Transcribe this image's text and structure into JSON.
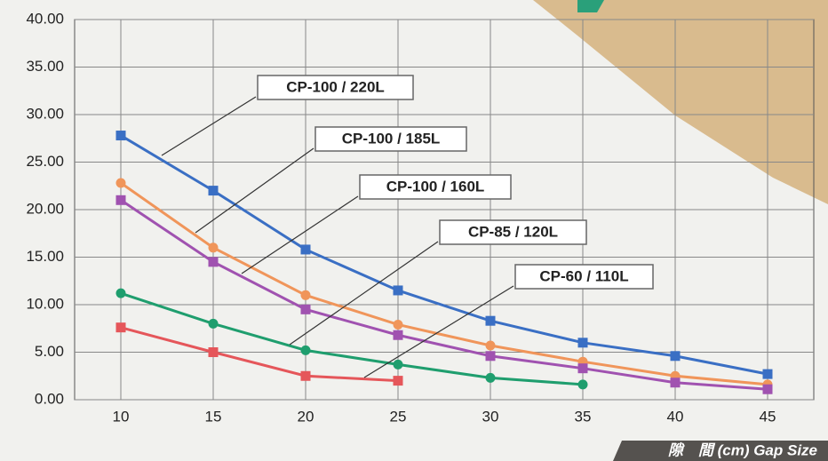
{
  "chart_data": {
    "type": "line",
    "x_label": "隙　間 (cm) Gap Size",
    "x": [
      10,
      15,
      20,
      25,
      30,
      35,
      40,
      45
    ],
    "series": [
      {
        "name": "CP-100 / 220L",
        "color": "#3a6fc4",
        "marker": "square",
        "values": [
          27.8,
          22,
          15.8,
          11.5,
          8.3,
          6,
          4.6,
          2.7
        ]
      },
      {
        "name": "CP-100 / 185L",
        "color": "#f0955a",
        "marker": "circle",
        "values": [
          22.8,
          16,
          11,
          7.9,
          5.7,
          4,
          2.5,
          1.6
        ]
      },
      {
        "name": "CP-100 / 160L",
        "color": "#a052b0",
        "marker": "square",
        "values": [
          21,
          14.5,
          9.5,
          6.8,
          4.6,
          3.3,
          1.8,
          1.1
        ]
      },
      {
        "name": "CP-85 / 120L",
        "color": "#1f9e6e",
        "marker": "circle",
        "values": [
          11.2,
          8,
          5.2,
          3.7,
          2.3,
          1.6,
          null,
          null
        ]
      },
      {
        "name": "CP-60 / 110L",
        "color": "#e5565a",
        "marker": "square",
        "values": [
          7.6,
          5,
          2.5,
          2,
          null,
          null,
          null,
          null
        ]
      }
    ],
    "xlim": [
      7.5,
      47.5
    ],
    "xticks": [
      10,
      15,
      20,
      25,
      30,
      35,
      40,
      45
    ],
    "ylim": [
      0,
      40
    ],
    "yticks": [
      {
        "value": 0,
        "label": "0.00"
      },
      {
        "value": 5,
        "label": "5.00"
      },
      {
        "value": 10,
        "label": "10.00"
      },
      {
        "value": 15,
        "label": "15.00"
      },
      {
        "value": 20,
        "label": "20.00"
      },
      {
        "value": 25,
        "label": "25.00"
      },
      {
        "value": 30,
        "label": "30.00"
      },
      {
        "value": 35,
        "label": "35.00"
      },
      {
        "value": 40,
        "label": "40.00"
      }
    ],
    "grid": true
  }
}
